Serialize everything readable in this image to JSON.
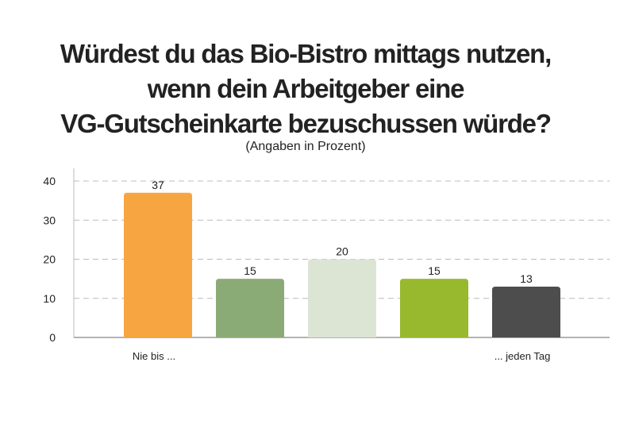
{
  "chart_data": {
    "type": "bar",
    "title_lines": [
      "Würdest du das Bio-Bistro mittags nutzen,",
      "wenn dein Arbeitgeber eine",
      "VG-Gutscheinkarte bezuschussen würde?"
    ],
    "subtitle": "(Angaben in Prozent)",
    "categories": [
      "Nie bis ...",
      "",
      "",
      "",
      "... jeden Tag"
    ],
    "values": [
      37,
      15,
      20,
      15,
      13
    ],
    "bar_colors": [
      "#F7A541",
      "#8BAB76",
      "#DCE4D4",
      "#98B92E",
      "#4D4D4D"
    ],
    "yticks": [
      0,
      10,
      20,
      30,
      40
    ],
    "ylim": [
      0,
      42
    ],
    "grid": true,
    "xlabel": "",
    "ylabel": ""
  }
}
